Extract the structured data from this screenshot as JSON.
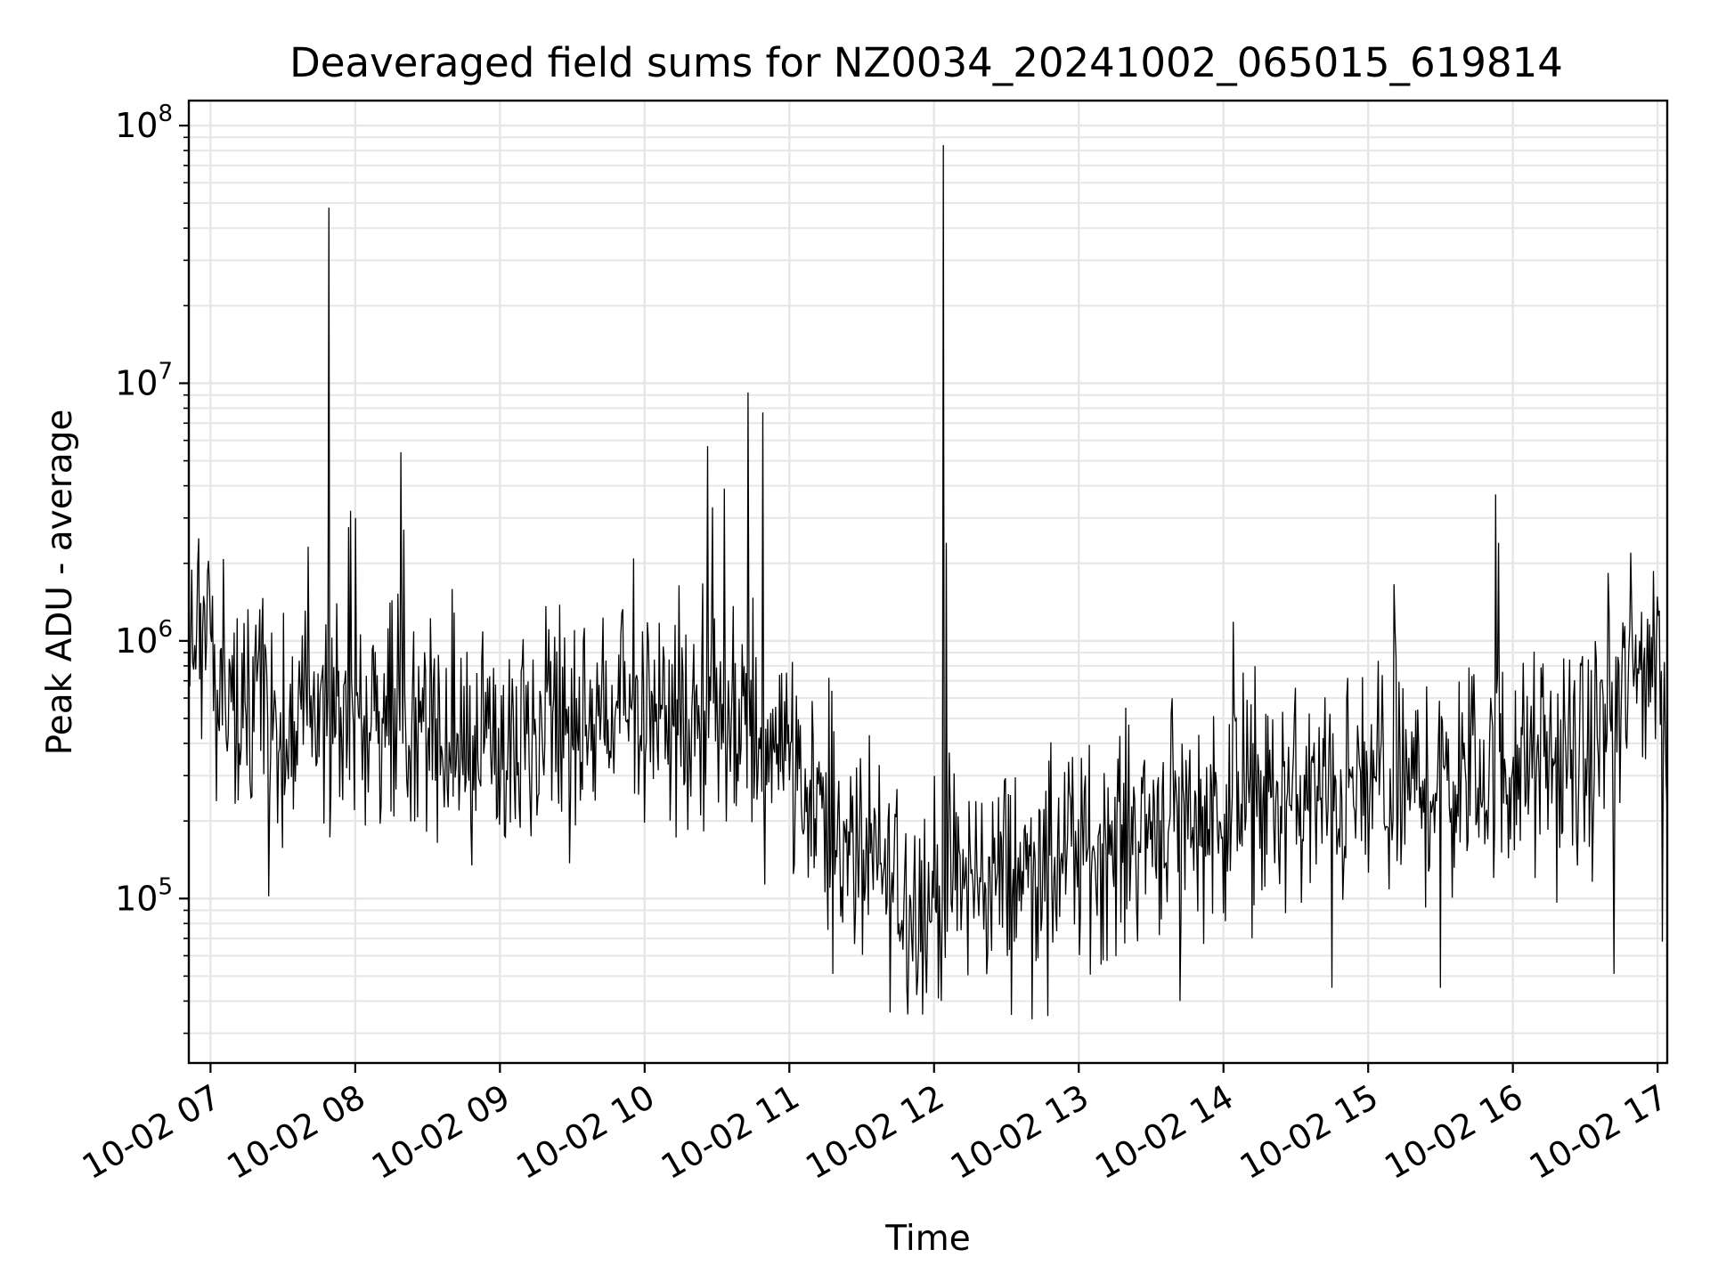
{
  "chart_data": {
    "type": "line",
    "title": "Deaveraged field sums for NZ0034_20241002_065015_619814",
    "xlabel": "Time",
    "ylabel": "Peak ADU - average",
    "yscale": "log",
    "ylim": [
      23000,
      125000000
    ],
    "xlim": [
      "2024-10-02 06:51",
      "2024-10-02 17:04"
    ],
    "grid": true,
    "line_color": "#000000",
    "x_ticks": [
      "10-02 07",
      "10-02 08",
      "10-02 09",
      "10-02 10",
      "10-02 11",
      "10-02 12",
      "10-02 13",
      "10-02 14",
      "10-02 15",
      "10-02 16",
      "10-02 17"
    ],
    "y_ticks": [
      {
        "base": "10",
        "exp": "5",
        "value": 100000
      },
      {
        "base": "10",
        "exp": "6",
        "value": 1000000
      },
      {
        "base": "10",
        "exp": "7",
        "value": 10000000
      },
      {
        "base": "10",
        "exp": "8",
        "value": 100000000
      }
    ],
    "baseline": [
      {
        "t": "2024-10-02 06:51",
        "v": 600000
      },
      {
        "t": "2024-10-02 06:56",
        "v": 1300000
      },
      {
        "t": "2024-10-02 07:02",
        "v": 700000
      },
      {
        "t": "2024-10-02 07:30",
        "v": 520000
      },
      {
        "t": "2024-10-02 08:00",
        "v": 500000
      },
      {
        "t": "2024-10-02 08:20",
        "v": 560000
      },
      {
        "t": "2024-10-02 08:40",
        "v": 380000
      },
      {
        "t": "2024-10-02 09:00",
        "v": 380000
      },
      {
        "t": "2024-10-02 09:30",
        "v": 450000
      },
      {
        "t": "2024-10-02 10:00",
        "v": 560000
      },
      {
        "t": "2024-10-02 10:30",
        "v": 450000
      },
      {
        "t": "2024-10-02 11:00",
        "v": 400000
      },
      {
        "t": "2024-10-02 11:20",
        "v": 170000
      },
      {
        "t": "2024-10-02 11:50",
        "v": 100000
      },
      {
        "t": "2024-10-02 12:20",
        "v": 120000
      },
      {
        "t": "2024-10-02 12:50",
        "v": 130000
      },
      {
        "t": "2024-10-02 13:30",
        "v": 200000
      },
      {
        "t": "2024-10-02 14:30",
        "v": 240000
      },
      {
        "t": "2024-10-02 15:30",
        "v": 280000
      },
      {
        "t": "2024-10-02 16:00",
        "v": 320000
      },
      {
        "t": "2024-10-02 16:30",
        "v": 330000
      },
      {
        "t": "2024-10-02 17:00",
        "v": 1000000
      },
      {
        "t": "2024-10-02 17:04",
        "v": 300000
      }
    ],
    "spikes": [
      {
        "t": "2024-10-02 06:55",
        "v": 2500000
      },
      {
        "t": "2024-10-02 07:49",
        "v": 48000000
      },
      {
        "t": "2024-10-02 07:58",
        "v": 3200000
      },
      {
        "t": "2024-10-02 08:00",
        "v": 3000000
      },
      {
        "t": "2024-10-02 08:19",
        "v": 5400000
      },
      {
        "t": "2024-10-02 08:20",
        "v": 2700000
      },
      {
        "t": "2024-10-02 10:26",
        "v": 5700000
      },
      {
        "t": "2024-10-02 10:28",
        "v": 3300000
      },
      {
        "t": "2024-10-02 10:33",
        "v": 3900000
      },
      {
        "t": "2024-10-02 10:43",
        "v": 9200000
      },
      {
        "t": "2024-10-02 10:49",
        "v": 7700000
      },
      {
        "t": "2024-10-02 12:04",
        "v": 84000000
      },
      {
        "t": "2024-10-02 12:05",
        "v": 2400000
      },
      {
        "t": "2024-10-02 15:53",
        "v": 3700000
      },
      {
        "t": "2024-10-02 15:54",
        "v": 2400000
      },
      {
        "t": "2024-10-02 16:49",
        "v": 2200000
      }
    ],
    "dips": [
      {
        "t": "2024-10-02 07:24",
        "v": 102000
      },
      {
        "t": "2024-10-02 11:18",
        "v": 51000
      },
      {
        "t": "2024-10-02 11:57",
        "v": 43000
      },
      {
        "t": "2024-10-02 12:47",
        "v": 35000
      },
      {
        "t": "2024-10-02 13:42",
        "v": 40000
      },
      {
        "t": "2024-10-02 14:45",
        "v": 45000
      },
      {
        "t": "2024-10-02 15:30",
        "v": 45000
      },
      {
        "t": "2024-10-02 16:42",
        "v": 51000
      },
      {
        "t": "2024-10-02 17:02",
        "v": 68000
      }
    ]
  }
}
